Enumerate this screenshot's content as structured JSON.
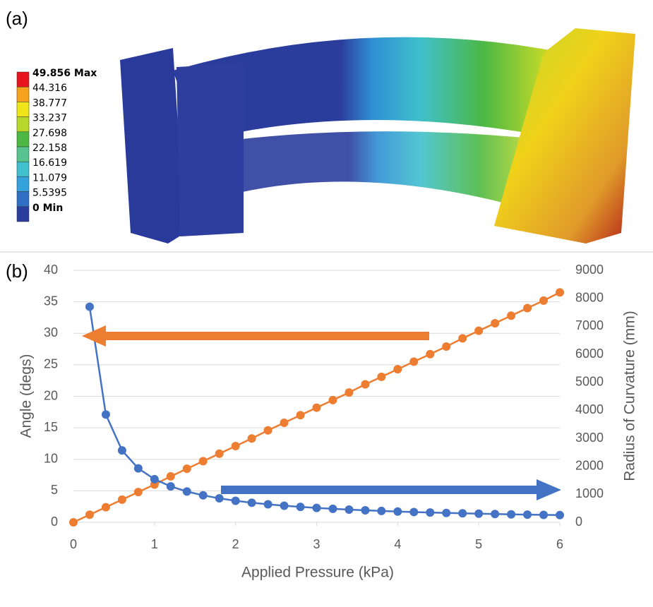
{
  "panel_labels": [
    "(a)",
    "(b)"
  ],
  "contour_legend": {
    "labels": [
      "49.856 Max",
      "44.316",
      "38.777",
      "33.237",
      "27.698",
      "22.158",
      "16.619",
      "11.079",
      "5.5395",
      "0 Min"
    ],
    "colors": [
      "#e8141c",
      "#f5a31c",
      "#f0e51a",
      "#b8d72b",
      "#4cb843",
      "#58c38f",
      "#3fc0cc",
      "#35a2dd",
      "#2f6fc4",
      "#2b3d9c"
    ]
  },
  "chart_data": {
    "type": "line",
    "x_label": "Applied Pressure (kPa)",
    "y_label": "Angle (degs)",
    "y2_label": "Radius of Curvature (mm)",
    "x": [
      0,
      0.2,
      0.4,
      0.6,
      0.8,
      1.0,
      1.2,
      1.4,
      1.6,
      1.8,
      2.0,
      2.2,
      2.4,
      2.6,
      2.8,
      3.0,
      3.2,
      3.4,
      3.6,
      3.8,
      4.0,
      4.2,
      4.4,
      4.6,
      4.8,
      5.0,
      5.2,
      5.4,
      5.6,
      5.8,
      6.0
    ],
    "series": [
      {
        "color": "#ed7d31",
        "axis": "y",
        "values": [
          0,
          1.2,
          2.4,
          3.6,
          4.8,
          6.0,
          7.3,
          8.5,
          9.7,
          10.9,
          12.1,
          13.3,
          14.6,
          15.8,
          17.0,
          18.2,
          19.4,
          20.6,
          21.9,
          23.1,
          24.3,
          25.5,
          26.7,
          27.9,
          29.2,
          30.4,
          31.6,
          32.8,
          34.0,
          35.2,
          36.5
        ]
      },
      {
        "color": "#4472c4",
        "axis": "y2",
        "values": [
          null,
          7700,
          3850,
          2567,
          1925,
          1540,
          1283,
          1100,
          963,
          856,
          770,
          700,
          642,
          592,
          550,
          513,
          481,
          453,
          428,
          405,
          385,
          367,
          350,
          335,
          321,
          308,
          296,
          285,
          275,
          266,
          257
        ]
      }
    ],
    "xlim": [
      0,
      6
    ],
    "xticks": [
      0,
      1,
      2,
      3,
      4,
      5,
      6
    ],
    "ylim": [
      0,
      40
    ],
    "yticks": [
      0,
      5,
      10,
      15,
      20,
      25,
      30,
      35,
      40
    ],
    "y2lim": [
      0,
      9000
    ],
    "y2ticks": [
      0,
      1000,
      2000,
      3000,
      4000,
      5000,
      6000,
      7000,
      8000,
      9000
    ],
    "grid": true
  }
}
